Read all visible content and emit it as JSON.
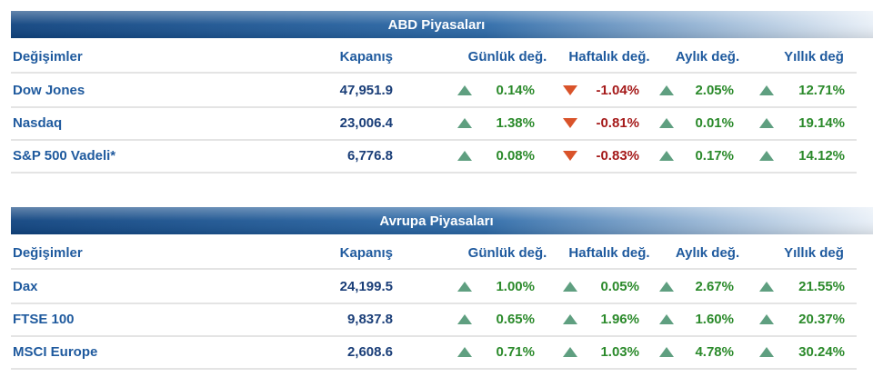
{
  "tables": [
    {
      "title": "ABD Piyasaları",
      "header": [
        "Değişimler",
        "Kapanış",
        "Günlük değ.",
        "Haftalık değ.",
        "Aylık değ.",
        "Yıllık değ"
      ],
      "rows": [
        [
          "Dow Jones",
          "47,951.9",
          "0.14%",
          "-1.04%",
          "2.05%",
          "12.71%"
        ],
        [
          "Nasdaq",
          "23,006.4",
          "1.38%",
          "-0.81%",
          "0.01%",
          "19.14%"
        ],
        [
          "S&P 500 Vadeli*",
          "6,776.8",
          "0.08%",
          "-0.83%",
          "0.17%",
          "14.12%"
        ]
      ]
    },
    {
      "title": "Avrupa Piyasaları",
      "header": [
        "Değişimler",
        "Kapanış",
        "Günlük değ.",
        "Haftalık değ.",
        "Aylık değ.",
        "Yıllık değ"
      ],
      "rows": [
        [
          "Dax",
          "24,199.5",
          "1.00%",
          "0.05%",
          "2.67%",
          "21.55%"
        ],
        [
          "FTSE 100",
          "9,837.8",
          "0.65%",
          "1.96%",
          "1.60%",
          "20.37%"
        ],
        [
          "MSCI Europe",
          "2,608.6",
          "0.71%",
          "1.03%",
          "4.78%",
          "30.24%"
        ]
      ]
    }
  ]
}
